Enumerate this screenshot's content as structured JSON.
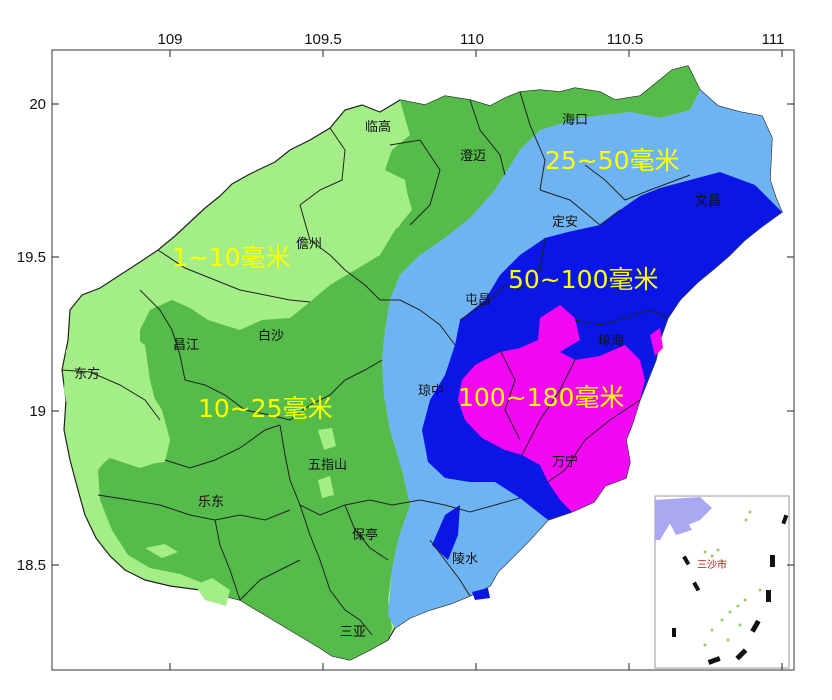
{
  "map": {
    "axes": {
      "longitude_ticks": [
        "109",
        "109.5",
        "110",
        "110.5",
        "111"
      ],
      "latitude_ticks": [
        "20",
        "19.5",
        "19",
        "18.5"
      ]
    },
    "rainfall_bands": [
      {
        "label": "1~10毫米",
        "color": "#a3ee86"
      },
      {
        "label": "10~25毫米",
        "color": "#55bb4a"
      },
      {
        "label": "25~50毫米",
        "color": "#6fb4f2"
      },
      {
        "label": "50~100毫米",
        "color": "#0a16e6"
      },
      {
        "label": "100~180毫米",
        "color": "#f208f2"
      }
    ],
    "counties": {
      "haikou": "海口",
      "lingao": "临高",
      "chengmai": "澄迈",
      "wenchang": "文昌",
      "dingan": "定安",
      "danzhou": "儋州",
      "tunchang": "屯昌",
      "qionghai": "琼海",
      "changjiang": "昌江",
      "baisha": "白沙",
      "dongfang": "东方",
      "qiongzhong": "琼中",
      "wuzhishan": "五指山",
      "wanning": "万宁",
      "ledong": "乐东",
      "baoting": "保亭",
      "lingshui": "陵水",
      "sanya": "三亚"
    },
    "inset": {
      "label": "三沙市"
    }
  }
}
